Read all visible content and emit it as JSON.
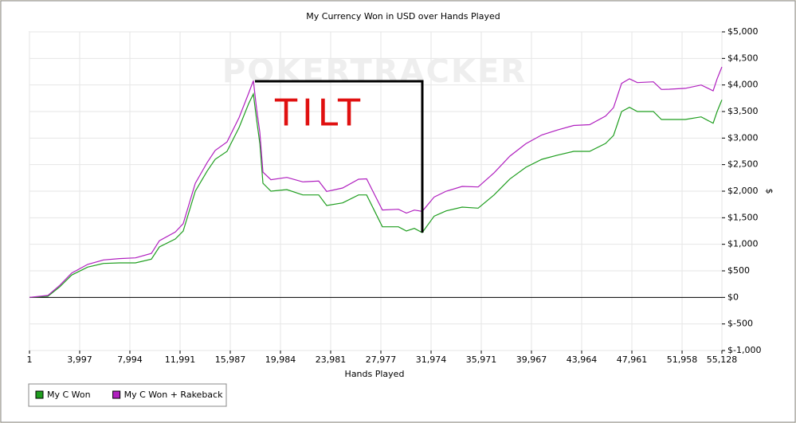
{
  "chart_data": {
    "type": "line",
    "title": "My Currency Won in USD over Hands Played",
    "x_label": "Hands Played",
    "y_label": "$",
    "watermark": "POKERTRACKER",
    "annotation": "TILT",
    "x": [
      1,
      1460,
      2410,
      3360,
      4630,
      5900,
      7170,
      8440,
      9710,
      10340,
      11610,
      12240,
      13200,
      14150,
      14780,
      15730,
      16690,
      17450,
      17830,
      18080,
      18340,
      18590,
      19220,
      20490,
      21760,
      23030,
      23660,
      24930,
      26200,
      26840,
      27470,
      28100,
      29370,
      30010,
      30640,
      31270,
      32220,
      33180,
      34450,
      35720,
      36990,
      38250,
      39520,
      40790,
      42060,
      43330,
      44600,
      45870,
      46500,
      47140,
      47770,
      48400,
      49670,
      50310,
      50940,
      52210,
      53480,
      54430,
      54750,
      55128
    ],
    "series": [
      {
        "name": "My C Won",
        "color": "#1f9e1f",
        "values": [
          0,
          20,
          200,
          420,
          570,
          640,
          650,
          650,
          720,
          950,
          1100,
          1250,
          2000,
          2380,
          2600,
          2750,
          3200,
          3650,
          3830,
          3350,
          2900,
          2150,
          2000,
          2030,
          1930,
          1930,
          1730,
          1780,
          1930,
          1930,
          1630,
          1330,
          1330,
          1250,
          1300,
          1220,
          1530,
          1630,
          1700,
          1680,
          1930,
          2230,
          2450,
          2600,
          2680,
          2750,
          2750,
          2900,
          3050,
          3500,
          3580,
          3500,
          3500,
          3350,
          3350,
          3350,
          3400,
          3280,
          3500,
          3720
        ]
      },
      {
        "name": "My C Won + Rakeback",
        "color": "#b01fbf",
        "values": [
          0,
          36,
          227,
          458,
          622,
          706,
          731,
          745,
          829,
          1067,
          1231,
          1388,
          2148,
          2539,
          2766,
          2927,
          3388,
          3846,
          4080,
          3553,
          3106,
          2359,
          2216,
          2260,
          2175,
          2190,
          1996,
          2060,
          2225,
          2232,
          1939,
          1646,
          1660,
          1587,
          1645,
          1620,
          1890,
          2000,
          2090,
          2080,
          2346,
          2660,
          2894,
          3059,
          3153,
          3237,
          3252,
          3416,
          3573,
          4030,
          4117,
          4045,
          4060,
          3916,
          3920,
          3937,
          4000,
          3890,
          4116,
          4340
        ]
      }
    ],
    "xlim": [
      1,
      55128
    ],
    "xticks": [
      1,
      {
        "value": 3997,
        "label": "3,997"
      },
      {
        "value": 7994,
        "label": "7,994"
      },
      {
        "value": 11991,
        "label": "11,991"
      },
      {
        "value": 15987,
        "label": "15,987"
      },
      {
        "value": 19984,
        "label": "19,984"
      },
      {
        "value": 23981,
        "label": "23,981"
      },
      {
        "value": 27977,
        "label": "27,977"
      },
      {
        "value": 31974,
        "label": "31,974"
      },
      {
        "value": 35971,
        "label": "35,971"
      },
      {
        "value": 39967,
        "label": "39,967"
      },
      {
        "value": 43964,
        "label": "43,964"
      },
      {
        "value": 47961,
        "label": "47,961"
      },
      {
        "value": 51958,
        "label": "51,958"
      },
      {
        "value": 55128,
        "label": "55,128"
      }
    ],
    "ylim": [
      -1000,
      5000
    ],
    "yticks": [
      {
        "value": -1000,
        "label": "$-1,000"
      },
      {
        "value": -500,
        "label": "$-500"
      },
      {
        "value": 0,
        "label": "$0"
      },
      {
        "value": 500,
        "label": "$500"
      },
      {
        "value": 1000,
        "label": "$1,000"
      },
      {
        "value": 1500,
        "label": "$1,500"
      },
      {
        "value": 2000,
        "label": "$2,000"
      },
      {
        "value": 2500,
        "label": "$2,500"
      },
      {
        "value": 3000,
        "label": "$3,000"
      },
      {
        "value": 3500,
        "label": "$3,500"
      },
      {
        "value": 4000,
        "label": "$4,000"
      },
      {
        "value": 4500,
        "label": "$4,500"
      },
      {
        "value": 5000,
        "label": "$5,000"
      }
    ],
    "grid": true
  }
}
